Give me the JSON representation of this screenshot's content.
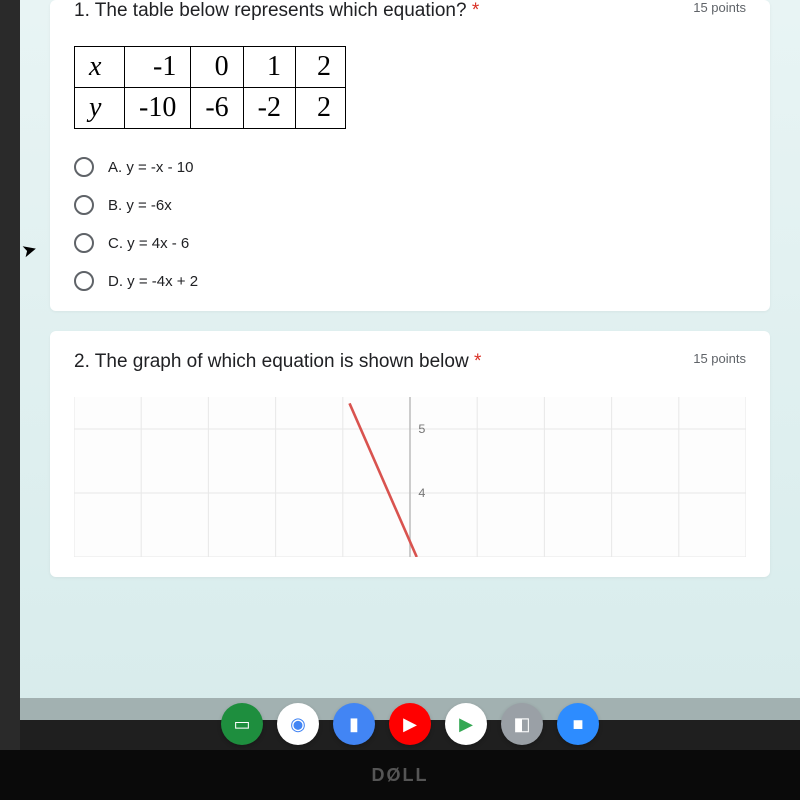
{
  "q1": {
    "title": "1. The table below represents which equation?",
    "required_marker": "*",
    "points": "15 points",
    "table": {
      "row_labels": [
        "x",
        "y"
      ],
      "rows": [
        [
          "-1",
          "0",
          "1",
          "2"
        ],
        [
          "-10",
          "-6",
          "-2",
          "2"
        ]
      ],
      "border_color": "#000000",
      "fontsize": 28,
      "font_family": "Times New Roman"
    },
    "options": [
      "A. y = -x - 10",
      "B. y = -6x",
      "C. y = 4x - 6",
      "D. y = -4x + 2"
    ]
  },
  "q2": {
    "title": "2. The graph of which equation is shown below",
    "required_marker": "*",
    "points": "15 points",
    "graph": {
      "type": "line",
      "visible_y_labels": [
        "5",
        "4"
      ],
      "grid_color": "#e8e8e8",
      "axis_color": "#bfbfbf",
      "line_color": "#d9534f",
      "line_width": 2.5,
      "background_color": "#fdfdfd",
      "ylim": [
        3,
        5.5
      ],
      "line_points": [
        [
          -0.9,
          5.4
        ],
        [
          0.1,
          3.0
        ]
      ]
    }
  },
  "dock": {
    "icons": [
      {
        "name": "classroom",
        "bg": "#1e8e3e",
        "glyph": "▭"
      },
      {
        "name": "chrome",
        "bg": "#ffffff",
        "glyph": "◉"
      },
      {
        "name": "docs",
        "bg": "#4285f4",
        "glyph": "▮"
      },
      {
        "name": "youtube",
        "bg": "#ff0000",
        "glyph": "▶"
      },
      {
        "name": "play",
        "bg": "#ffffff",
        "glyph": "▶"
      },
      {
        "name": "camera",
        "bg": "#9aa0a6",
        "glyph": "📷"
      },
      {
        "name": "zoom",
        "bg": "#2d8cff",
        "glyph": "■"
      }
    ]
  },
  "device_logo": "DØLL",
  "colors": {
    "screen_bg": "#e0f0f0",
    "card_bg": "#ffffff",
    "text": "#202124",
    "muted": "#5f6368",
    "required": "#d93025",
    "radio_border": "#5f6368"
  }
}
